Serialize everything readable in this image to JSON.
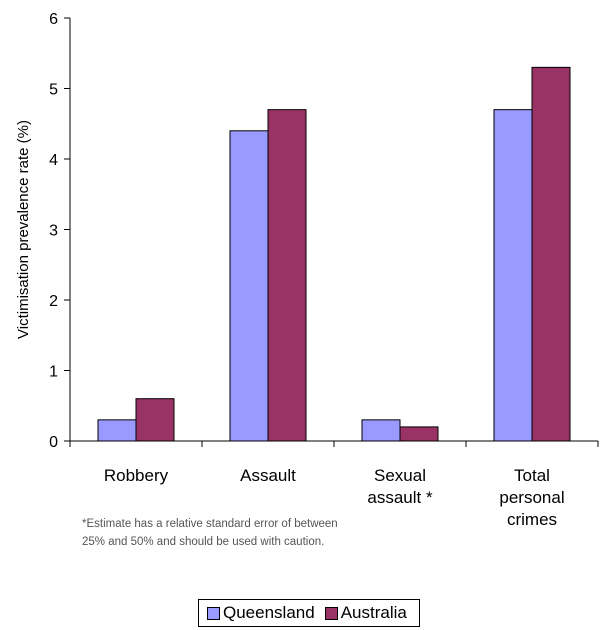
{
  "chart_data": {
    "type": "bar",
    "categories": [
      [
        "Robbery"
      ],
      [
        "Assault"
      ],
      [
        "Sexual",
        "assault *"
      ],
      [
        "Total",
        "personal",
        "crimes"
      ]
    ],
    "series": [
      {
        "name": "Queensland",
        "values": [
          0.3,
          4.4,
          0.3,
          4.7
        ],
        "color": "#9999ff"
      },
      {
        "name": "Australia",
        "values": [
          0.6,
          4.7,
          0.2,
          5.3
        ],
        "color": "#993366"
      }
    ],
    "ylabel": "Victimisation prevalence rate (%)",
    "ylim": [
      0,
      6
    ],
    "yticks": [
      0,
      1,
      2,
      3,
      4,
      5,
      6
    ],
    "grid": false,
    "legend": "bottom"
  },
  "note": {
    "line1": "*Estimate has a relative standard error of between",
    "line2": "25% and 50% and should be used with caution."
  }
}
